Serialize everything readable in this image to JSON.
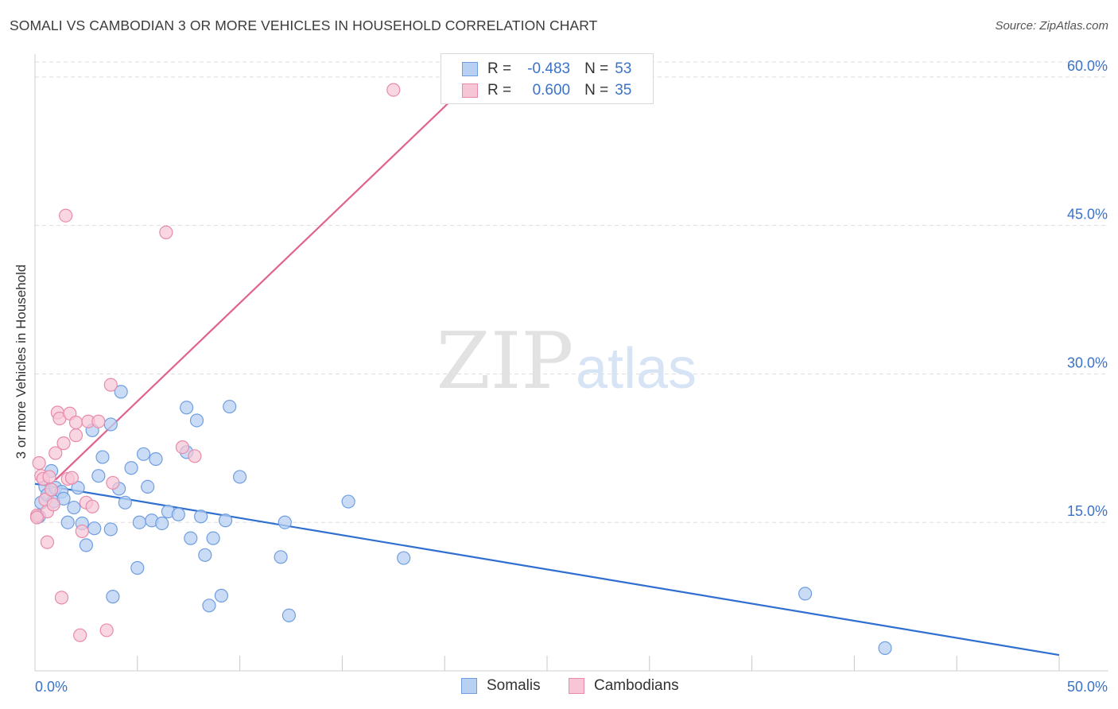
{
  "header": {
    "title": "SOMALI VS CAMBODIAN 3 OR MORE VEHICLES IN HOUSEHOLD CORRELATION CHART",
    "source": "Source: ZipAtlas.com"
  },
  "watermark": {
    "zip": "ZIP",
    "atlas": "atlas"
  },
  "legend": {
    "r_label": "R =",
    "n_label": "N =",
    "rows": [
      {
        "r": "-0.483",
        "n": "53"
      },
      {
        "r": "0.600",
        "n": "35"
      }
    ]
  },
  "colors": {
    "somali_fill": "#b8d0f2",
    "somali_stroke": "#6f9ee0",
    "somali_line": "#2f6fd0",
    "cambodian_fill": "#f7c6d6",
    "cambodian_stroke": "#e88aaa",
    "cambodian_line": "#e0628e",
    "axis_text": "#3a72c8",
    "grid": "#dddddd"
  },
  "chart_data": {
    "type": "scatter",
    "title": "SOMALI VS CAMBODIAN 3 OR MORE VEHICLES IN HOUSEHOLD CORRELATION CHART",
    "xlabel": "",
    "ylabel": "3 or more Vehicles in Household",
    "xlim": [
      0,
      50
    ],
    "ylim": [
      0,
      62
    ],
    "x_tick_labels": [
      "0.0%",
      "50.0%"
    ],
    "y_ticks": [
      15,
      30,
      45,
      60
    ],
    "y_tick_labels": [
      "15.0%",
      "30.0%",
      "45.0%",
      "60.0%"
    ],
    "legend_position": "top-center",
    "series": [
      {
        "name": "Somalis",
        "r": -0.483,
        "n": 53,
        "trend": {
          "x": [
            0,
            50
          ],
          "y": [
            18.9,
            1.6
          ]
        },
        "points": [
          [
            0.2,
            15.6
          ],
          [
            0.3,
            17.0
          ],
          [
            0.5,
            18.6
          ],
          [
            0.6,
            17.8
          ],
          [
            0.8,
            20.2
          ],
          [
            0.9,
            17.1
          ],
          [
            1.0,
            18.5
          ],
          [
            1.3,
            18.1
          ],
          [
            1.4,
            17.4
          ],
          [
            1.6,
            15.0
          ],
          [
            1.9,
            16.5
          ],
          [
            2.1,
            18.5
          ],
          [
            2.3,
            14.9
          ],
          [
            2.5,
            12.7
          ],
          [
            2.8,
            24.3
          ],
          [
            2.9,
            14.4
          ],
          [
            3.1,
            19.7
          ],
          [
            3.3,
            21.6
          ],
          [
            3.7,
            14.3
          ],
          [
            3.7,
            24.9
          ],
          [
            3.8,
            7.5
          ],
          [
            4.1,
            18.4
          ],
          [
            4.2,
            28.2
          ],
          [
            4.4,
            17.0
          ],
          [
            4.7,
            20.5
          ],
          [
            5.0,
            10.4
          ],
          [
            5.1,
            15.0
          ],
          [
            5.3,
            21.9
          ],
          [
            5.5,
            18.6
          ],
          [
            5.7,
            15.2
          ],
          [
            5.9,
            21.4
          ],
          [
            6.2,
            14.9
          ],
          [
            6.5,
            16.1
          ],
          [
            7.0,
            15.8
          ],
          [
            7.4,
            22.1
          ],
          [
            7.4,
            26.6
          ],
          [
            7.6,
            13.4
          ],
          [
            7.9,
            25.3
          ],
          [
            8.1,
            15.6
          ],
          [
            8.3,
            11.7
          ],
          [
            8.5,
            6.6
          ],
          [
            8.7,
            13.4
          ],
          [
            9.1,
            7.6
          ],
          [
            9.3,
            15.2
          ],
          [
            9.5,
            26.7
          ],
          [
            10.0,
            19.6
          ],
          [
            12.0,
            11.5
          ],
          [
            12.2,
            15.0
          ],
          [
            12.4,
            5.6
          ],
          [
            15.3,
            17.1
          ],
          [
            18.0,
            11.4
          ],
          [
            37.6,
            7.8
          ],
          [
            41.5,
            2.3
          ]
        ]
      },
      {
        "name": "Cambodians",
        "r": 0.6,
        "n": 35,
        "trend": {
          "x": [
            1.0,
            20.5
          ],
          "y": [
            19.3,
            58.0
          ]
        },
        "points": [
          [
            0.1,
            15.7
          ],
          [
            0.2,
            21.0
          ],
          [
            0.3,
            19.7
          ],
          [
            0.4,
            19.4
          ],
          [
            0.5,
            17.3
          ],
          [
            0.6,
            16.1
          ],
          [
            0.6,
            13.0
          ],
          [
            0.7,
            19.6
          ],
          [
            0.8,
            18.3
          ],
          [
            0.9,
            16.8
          ],
          [
            1.0,
            22.0
          ],
          [
            1.1,
            26.1
          ],
          [
            1.2,
            25.5
          ],
          [
            1.3,
            7.4
          ],
          [
            1.4,
            23.0
          ],
          [
            1.5,
            46.0
          ],
          [
            1.6,
            19.4
          ],
          [
            1.7,
            26.0
          ],
          [
            1.8,
            19.5
          ],
          [
            2.0,
            23.8
          ],
          [
            2.0,
            25.1
          ],
          [
            2.2,
            3.6
          ],
          [
            2.3,
            14.1
          ],
          [
            2.5,
            17.0
          ],
          [
            2.6,
            25.2
          ],
          [
            2.8,
            16.6
          ],
          [
            3.1,
            25.2
          ],
          [
            3.5,
            4.1
          ],
          [
            3.7,
            28.9
          ],
          [
            3.8,
            19.0
          ],
          [
            6.4,
            44.3
          ],
          [
            7.2,
            22.6
          ],
          [
            7.8,
            21.7
          ],
          [
            17.5,
            58.7
          ],
          [
            0.1,
            15.5
          ]
        ]
      }
    ]
  },
  "bottom_legend": {
    "items": [
      {
        "label": "Somalis"
      },
      {
        "label": "Cambodians"
      }
    ]
  }
}
